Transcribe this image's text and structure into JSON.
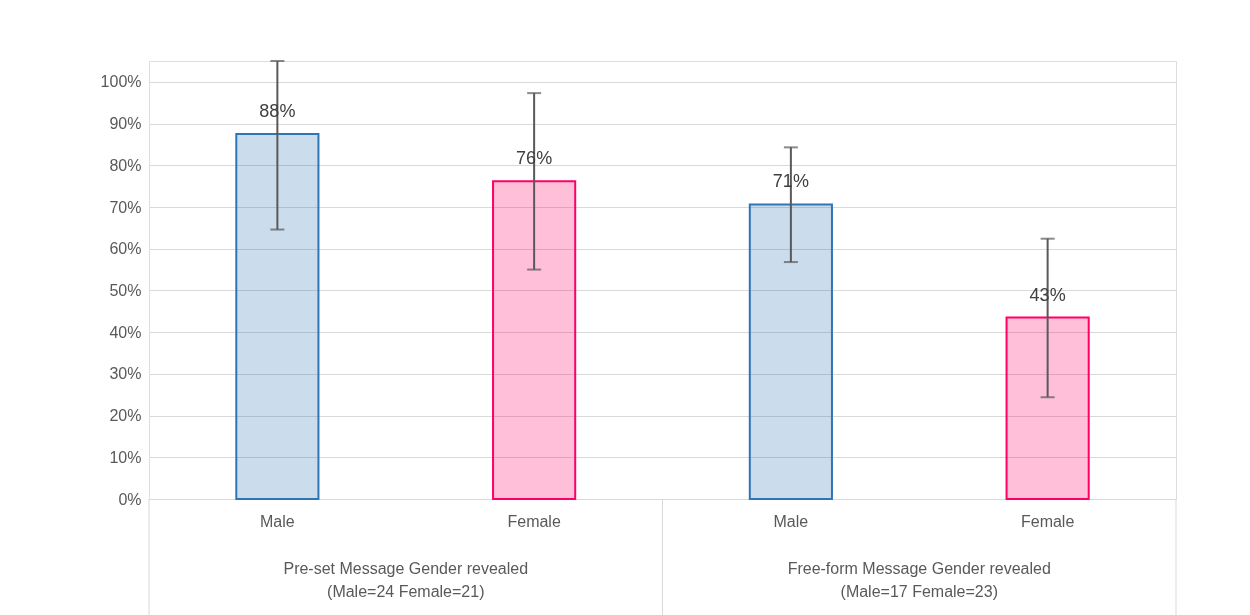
{
  "chart_data": {
    "type": "bar",
    "categories": [
      "Male",
      "Female",
      "Male",
      "Female"
    ],
    "values": [
      87.5,
      76.2,
      70.6,
      43.5
    ],
    "colors": [
      "#2e75b6",
      "#ff0066",
      "#2e75b6",
      "#ff0066"
    ],
    "errors": [
      [
        64.6,
        105
      ],
      [
        55.0,
        97.3
      ],
      [
        56.8,
        84.3
      ],
      [
        24.4,
        62.4
      ]
    ],
    "value_labels": [
      "88%",
      "76%",
      "71%",
      "43%"
    ],
    "ylim": [
      0,
      105
    ],
    "yticks": [
      {
        "value": 0,
        "label": "0%"
      },
      {
        "value": 10,
        "label": "10%"
      },
      {
        "value": 20,
        "label": "20%"
      },
      {
        "value": 30,
        "label": "30%"
      },
      {
        "value": 40,
        "label": "40%"
      },
      {
        "value": 50,
        "label": "50%"
      },
      {
        "value": 60,
        "label": "60%"
      },
      {
        "value": 70,
        "label": "70%"
      },
      {
        "value": 80,
        "label": "80%"
      },
      {
        "value": 90,
        "label": "90%"
      },
      {
        "value": 100,
        "label": "100%"
      }
    ],
    "annotations": [
      "Pre-set Message Gender revealed (Male=24 Female=21)",
      "Free-form Message Gender revealed (Male=17 Female=23)"
    ],
    "grid": "y",
    "legend": false
  }
}
